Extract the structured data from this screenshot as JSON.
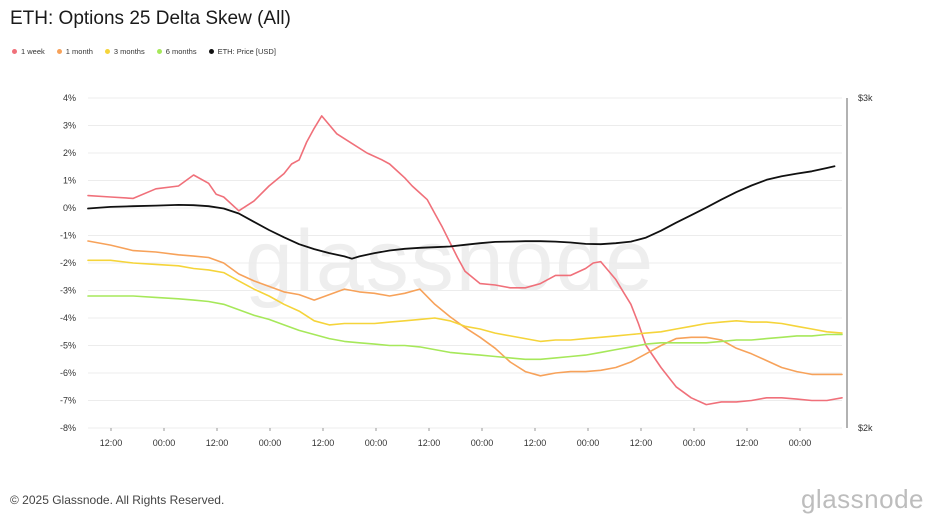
{
  "header": {
    "title": "ETH: Options 25 Delta Skew (All)"
  },
  "footer": {
    "copyright": "© 2025 Glassnode. All Rights Reserved.",
    "brand": "glassnode"
  },
  "watermark": "glassnode",
  "chart_data": {
    "type": "line",
    "title": "ETH: Options 25 Delta Skew (All)",
    "x_tick_labels": [
      "12:00",
      "00:00",
      "12:00",
      "00:00",
      "12:00",
      "00:00",
      "12:00",
      "00:00",
      "12:00",
      "00:00",
      "12:00",
      "00:00",
      "12:00",
      "00:00"
    ],
    "x_range": [
      0,
      100
    ],
    "y_left": {
      "ticks": [
        "4%",
        "3%",
        "2%",
        "1%",
        "0%",
        "-1%",
        "-2%",
        "-3%",
        "-4%",
        "-5%",
        "-6%",
        "-7%",
        "-8%"
      ],
      "range": [
        -8,
        4
      ]
    },
    "y_right": {
      "ticks": [
        "$3k",
        "$2k"
      ],
      "range": [
        2000,
        3000
      ]
    },
    "grid": "horizontal",
    "legend_position": "top-left",
    "series": [
      {
        "name": "1 week",
        "color": "#f0707a",
        "axis": "left",
        "x": [
          0,
          3,
          6,
          9,
          12,
          14,
          16,
          17,
          18,
          20,
          22,
          24,
          26,
          27,
          28,
          29,
          30,
          31,
          33,
          35,
          37,
          39,
          40,
          41,
          42,
          43,
          44,
          45,
          46,
          47,
          48,
          49,
          50,
          52,
          54,
          56,
          58,
          60,
          62,
          64,
          66,
          67,
          68,
          70,
          71,
          72,
          73,
          74,
          76,
          78,
          80,
          82,
          84,
          86,
          88,
          90,
          92,
          94,
          96,
          98,
          100
        ],
        "y": [
          0.45,
          0.4,
          0.35,
          0.7,
          0.8,
          1.2,
          0.9,
          0.5,
          0.4,
          -0.1,
          0.25,
          0.8,
          1.25,
          1.6,
          1.75,
          2.4,
          2.9,
          3.35,
          2.7,
          2.35,
          2.0,
          1.75,
          1.6,
          1.35,
          1.1,
          0.8,
          0.55,
          0.3,
          -0.2,
          -0.7,
          -1.25,
          -1.8,
          -2.3,
          -2.75,
          -2.8,
          -2.9,
          -2.9,
          -2.75,
          -2.45,
          -2.45,
          -2.2,
          -2.0,
          -1.95,
          -2.6,
          -3.05,
          -3.5,
          -4.2,
          -5.0,
          -5.8,
          -6.5,
          -6.9,
          -7.15,
          -7.05,
          -7.05,
          -7.0,
          -6.9,
          -6.9,
          -6.95,
          -7.0,
          -7.0,
          -6.9
        ]
      },
      {
        "name": "1 month",
        "color": "#f7a25a",
        "axis": "left",
        "x": [
          0,
          3,
          6,
          9,
          12,
          14,
          16,
          18,
          20,
          22,
          24,
          26,
          28,
          30,
          32,
          34,
          36,
          38,
          40,
          42,
          44,
          46,
          48,
          50,
          52,
          54,
          56,
          58,
          60,
          62,
          64,
          66,
          68,
          70,
          72,
          74,
          76,
          78,
          80,
          82,
          84,
          86,
          88,
          90,
          92,
          94,
          96,
          98,
          100
        ],
        "y": [
          -1.2,
          -1.35,
          -1.55,
          -1.6,
          -1.7,
          -1.75,
          -1.8,
          -2.0,
          -2.4,
          -2.65,
          -2.85,
          -3.05,
          -3.15,
          -3.35,
          -3.15,
          -2.95,
          -3.05,
          -3.1,
          -3.2,
          -3.1,
          -2.95,
          -3.5,
          -3.95,
          -4.35,
          -4.7,
          -5.1,
          -5.6,
          -5.95,
          -6.1,
          -6.0,
          -5.95,
          -5.95,
          -5.9,
          -5.8,
          -5.6,
          -5.3,
          -5.0,
          -4.75,
          -4.7,
          -4.7,
          -4.8,
          -5.1,
          -5.3,
          -5.55,
          -5.8,
          -5.95,
          -6.05,
          -6.05,
          -6.05
        ]
      },
      {
        "name": "3 months",
        "color": "#f5d43a",
        "axis": "left",
        "x": [
          0,
          3,
          6,
          9,
          12,
          14,
          16,
          18,
          20,
          22,
          24,
          26,
          28,
          30,
          32,
          34,
          36,
          38,
          40,
          42,
          44,
          46,
          48,
          50,
          52,
          54,
          56,
          58,
          60,
          62,
          64,
          66,
          68,
          70,
          72,
          74,
          76,
          78,
          80,
          82,
          84,
          86,
          88,
          90,
          92,
          94,
          96,
          98,
          100
        ],
        "y": [
          -1.9,
          -1.9,
          -2.0,
          -2.05,
          -2.1,
          -2.2,
          -2.25,
          -2.35,
          -2.65,
          -2.95,
          -3.2,
          -3.5,
          -3.75,
          -4.1,
          -4.25,
          -4.2,
          -4.2,
          -4.2,
          -4.15,
          -4.1,
          -4.05,
          -4.0,
          -4.1,
          -4.3,
          -4.4,
          -4.55,
          -4.65,
          -4.75,
          -4.85,
          -4.8,
          -4.8,
          -4.75,
          -4.7,
          -4.65,
          -4.6,
          -4.55,
          -4.5,
          -4.4,
          -4.3,
          -4.2,
          -4.15,
          -4.1,
          -4.15,
          -4.15,
          -4.2,
          -4.3,
          -4.4,
          -4.5,
          -4.55
        ]
      },
      {
        "name": "6 months",
        "color": "#a6e85a",
        "axis": "left",
        "x": [
          0,
          3,
          6,
          9,
          12,
          14,
          16,
          18,
          20,
          22,
          24,
          26,
          28,
          30,
          32,
          34,
          36,
          38,
          40,
          42,
          44,
          46,
          48,
          50,
          52,
          54,
          56,
          58,
          60,
          62,
          64,
          66,
          68,
          70,
          72,
          74,
          76,
          78,
          80,
          82,
          84,
          86,
          88,
          90,
          92,
          94,
          96,
          98,
          100
        ],
        "y": [
          -3.2,
          -3.2,
          -3.2,
          -3.25,
          -3.3,
          -3.35,
          -3.4,
          -3.5,
          -3.7,
          -3.9,
          -4.05,
          -4.25,
          -4.45,
          -4.6,
          -4.75,
          -4.85,
          -4.9,
          -4.95,
          -5.0,
          -5.0,
          -5.05,
          -5.15,
          -5.25,
          -5.3,
          -5.35,
          -5.4,
          -5.45,
          -5.5,
          -5.5,
          -5.45,
          -5.4,
          -5.35,
          -5.25,
          -5.15,
          -5.05,
          -4.95,
          -4.9,
          -4.9,
          -4.9,
          -4.9,
          -4.85,
          -4.8,
          -4.8,
          -4.75,
          -4.7,
          -4.65,
          -4.65,
          -4.6,
          -4.6
        ]
      },
      {
        "name": "ETH: Price [USD]",
        "color": "#111111",
        "axis": "right",
        "x": [
          0,
          3,
          6,
          9,
          12,
          14,
          16,
          18,
          20,
          22,
          24,
          26,
          28,
          30,
          32,
          34,
          35,
          36,
          38,
          40,
          42,
          44,
          46,
          48,
          50,
          52,
          54,
          56,
          58,
          60,
          62,
          64,
          66,
          68,
          70,
          72,
          74,
          76,
          78,
          80,
          82,
          84,
          86,
          88,
          90,
          92,
          94,
          96,
          98,
          99
        ],
        "y": [
          2665,
          2670,
          2672,
          2674,
          2676,
          2675,
          2672,
          2665,
          2650,
          2625,
          2600,
          2578,
          2557,
          2542,
          2530,
          2520,
          2513,
          2520,
          2530,
          2538,
          2543,
          2546,
          2548,
          2550,
          2555,
          2560,
          2564,
          2565,
          2566,
          2566,
          2565,
          2562,
          2558,
          2557,
          2560,
          2565,
          2577,
          2598,
          2622,
          2645,
          2668,
          2692,
          2715,
          2735,
          2752,
          2763,
          2771,
          2778,
          2788,
          2793
        ]
      }
    ]
  }
}
